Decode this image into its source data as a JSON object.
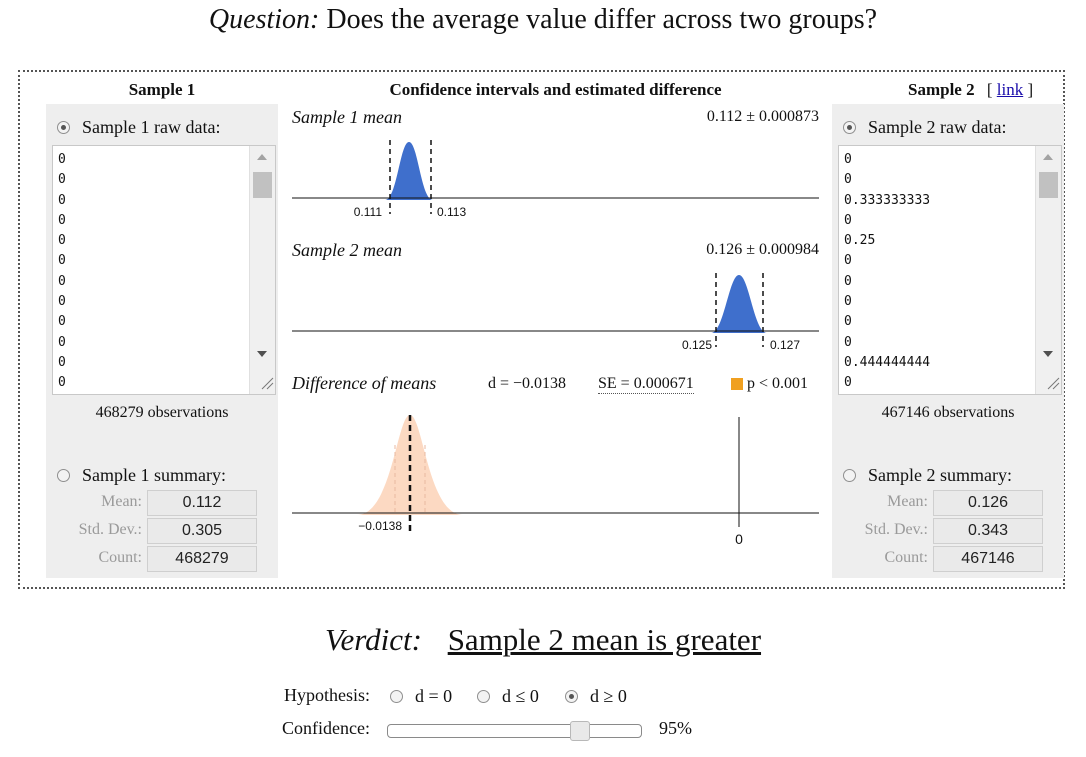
{
  "question": {
    "prefix": "Question:",
    "text": "Does the average value differ across two groups?"
  },
  "sample1": {
    "title": "Sample 1",
    "raw_label": "Sample 1 raw data:",
    "raw_values": [
      "0",
      "0",
      "0",
      "0",
      "0",
      "0",
      "0",
      "0",
      "0",
      "0",
      "0",
      "0"
    ],
    "observations": "468279 observations",
    "summary_label": "Sample 1 summary:",
    "mean_label": "Mean:",
    "mean": "0.112",
    "sd_label": "Std. Dev.:",
    "sd": "0.305",
    "count_label": "Count:",
    "count": "468279"
  },
  "sample2": {
    "title": "Sample 2",
    "link_open": "[",
    "link": "link",
    "link_close": "]",
    "raw_label": "Sample 2 raw data:",
    "raw_values": [
      "0",
      "0",
      "0.333333333",
      "0",
      "0.25",
      "0",
      "0",
      "0",
      "0",
      "0",
      "0.444444444",
      "0"
    ],
    "observations": "467146 observations",
    "summary_label": "Sample 2 summary:",
    "mean_label": "Mean:",
    "mean": "0.126",
    "sd_label": "Std. Dev.:",
    "sd": "0.343",
    "count_label": "Count:",
    "count": "467146"
  },
  "center": {
    "title": "Confidence intervals and estimated difference",
    "s1_label": "Sample 1 mean",
    "s1_value": "0.112 ± 0.000873",
    "s1_lo": "0.111",
    "s1_hi": "0.113",
    "s2_label": "Sample 2 mean",
    "s2_value": "0.126 ± 0.000984",
    "s2_lo": "0.125",
    "s2_hi": "0.127",
    "diff_label": "Difference of means",
    "d_text": "d = −0.0138",
    "se_text": "SE = 0.000671",
    "p_text": "p < 0.001",
    "diff_tick": "−0.0138",
    "zero_tick": "0"
  },
  "colors": {
    "accent_blue": "#3f6fcc",
    "diff_fill": "#fcd9c2",
    "p_marker": "#f0a020"
  },
  "verdict": {
    "prefix": "Verdict:",
    "text": "Sample 2 mean is greater"
  },
  "hypothesis": {
    "label": "Hypothesis:",
    "options": [
      "d = 0",
      "d ≤ 0",
      "d ≥ 0"
    ],
    "selected": "d ≥ 0"
  },
  "confidence": {
    "label": "Confidence:",
    "value": "95%",
    "level": 0.95
  }
}
